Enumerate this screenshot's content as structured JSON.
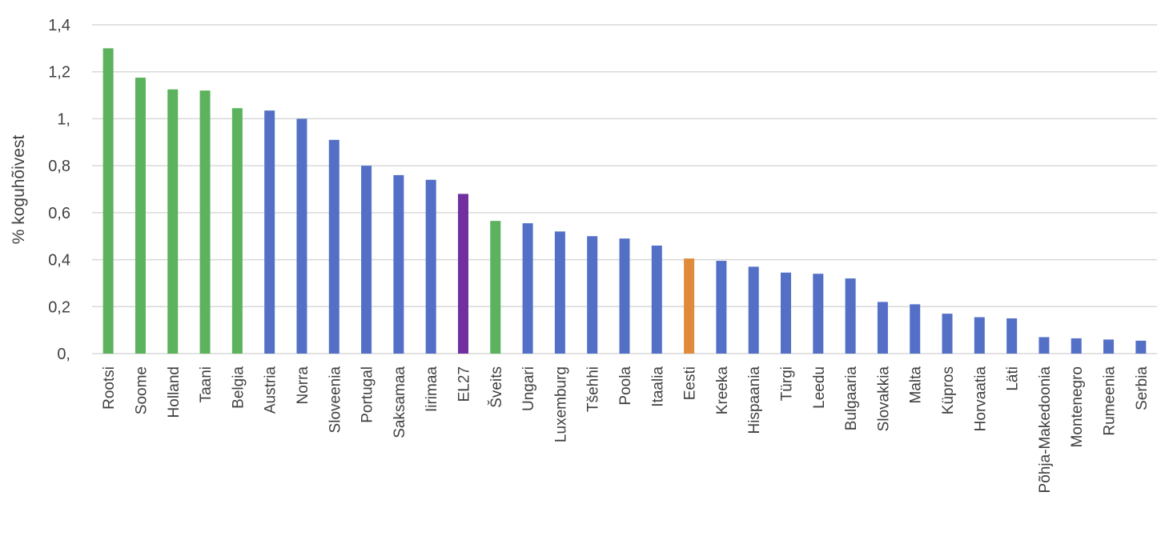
{
  "chart_data": {
    "type": "bar",
    "title": "",
    "xlabel": "",
    "ylabel": "% koguhõivest",
    "ylim": [
      0,
      1.4
    ],
    "grid": true,
    "legend": "none",
    "y_ticks": [
      {
        "value": 0,
        "label": "0,"
      },
      {
        "value": 0.2,
        "label": "0,2"
      },
      {
        "value": 0.4,
        "label": "0,4"
      },
      {
        "value": 0.6,
        "label": "0,6"
      },
      {
        "value": 0.8,
        "label": "0,8"
      },
      {
        "value": 1.0,
        "label": "1,"
      },
      {
        "value": 1.2,
        "label": "1,2"
      },
      {
        "value": 1.4,
        "label": "1,4"
      }
    ],
    "categories": [
      "Rootsi",
      "Soome",
      "Holland",
      "Taani",
      "Belgia",
      "Austria",
      "Norra",
      "Sloveenia",
      "Portugal",
      "Saksamaa",
      "Iirimaa",
      "EL27",
      "Šveits",
      "Ungari",
      "Luxemburg",
      "Tšehhi",
      "Poola",
      "Itaalia",
      "Eesti",
      "Kreeka",
      "Hispaania",
      "Türgi",
      "Leedu",
      "Bulgaaria",
      "Slovakkia",
      "Malta",
      "Küpros",
      "Horvaatia",
      "Läti",
      "Põhja-Makedoonia",
      "Montenegro",
      "Rumeenia",
      "Serbia"
    ],
    "values": [
      1.3,
      1.175,
      1.125,
      1.12,
      1.045,
      1.035,
      1.0,
      0.91,
      0.8,
      0.76,
      0.74,
      0.68,
      0.565,
      0.555,
      0.52,
      0.5,
      0.49,
      0.46,
      0.405,
      0.395,
      0.37,
      0.345,
      0.34,
      0.32,
      0.22,
      0.21,
      0.17,
      0.155,
      0.15,
      0.07,
      0.065,
      0.06,
      0.055
    ],
    "bar_colors": [
      "#5cb25d",
      "#5cb25d",
      "#5cb25d",
      "#5cb25d",
      "#5cb25d",
      "#5470c6",
      "#5470c6",
      "#5470c6",
      "#5470c6",
      "#5470c6",
      "#5470c6",
      "#7030a0",
      "#5cb25d",
      "#5470c6",
      "#5470c6",
      "#5470c6",
      "#5470c6",
      "#5470c6",
      "#e08a3c",
      "#5470c6",
      "#5470c6",
      "#5470c6",
      "#5470c6",
      "#5470c6",
      "#5470c6",
      "#5470c6",
      "#5470c6",
      "#5470c6",
      "#5470c6",
      "#5470c6",
      "#5470c6",
      "#5470c6",
      "#5470c6"
    ],
    "colors": {
      "green": "#5cb25d",
      "blue": "#5470c6",
      "purple": "#7030a0",
      "orange": "#e08a3c",
      "gridline": "#d9d9d9",
      "text": "#404040"
    }
  }
}
